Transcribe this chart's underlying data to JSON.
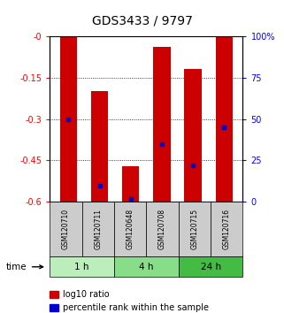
{
  "title": "GDS3433 / 9797",
  "samples": [
    "GSM120710",
    "GSM120711",
    "GSM120648",
    "GSM120708",
    "GSM120715",
    "GSM120716"
  ],
  "groups": [
    {
      "label": "1 h",
      "indices": [
        0,
        1
      ],
      "color": "#bbeebb"
    },
    {
      "label": "4 h",
      "indices": [
        2,
        3
      ],
      "color": "#88dd88"
    },
    {
      "label": "24 h",
      "indices": [
        4,
        5
      ],
      "color": "#44bb44"
    }
  ],
  "log10_top": [
    0.0,
    -0.2,
    -0.47,
    -0.04,
    -0.12,
    0.0
  ],
  "log10_bot": [
    -0.6,
    -0.6,
    -0.6,
    -0.6,
    -0.6,
    -0.6
  ],
  "percentile": [
    0.5,
    0.1,
    0.02,
    0.35,
    0.22,
    0.45
  ],
  "ylim_left": [
    -0.6,
    0.0
  ],
  "yticks_left": [
    0.0,
    -0.15,
    -0.3,
    -0.45,
    -0.6
  ],
  "ytick_labels_left": [
    "-0",
    "-0.15",
    "-0.3",
    "-0.45",
    "-0.6"
  ],
  "ylim_right": [
    0.0,
    1.0
  ],
  "yticks_right": [
    0.0,
    0.25,
    0.5,
    0.75,
    1.0
  ],
  "ytick_labels_right": [
    "0",
    "25",
    "50",
    "75",
    "100%"
  ],
  "bar_color": "#cc0000",
  "dot_color": "#0000cc",
  "bar_width": 0.55,
  "tick_fontsize": 7,
  "title_fontsize": 10,
  "legend_items": [
    "log10 ratio",
    "percentile rank within the sample"
  ],
  "time_label": "time"
}
